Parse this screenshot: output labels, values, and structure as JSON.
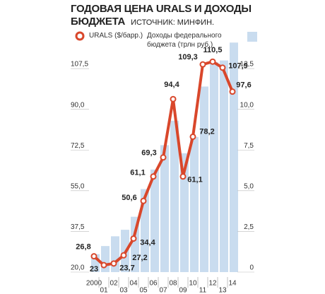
{
  "chart_data": {
    "type": "bar-line",
    "title": "ГОДОВАЯ ЦЕНА URALS И ДОХОДЫ БЮДЖЕТА",
    "subtitle": "ИСТОЧНИК: МИНФИН.",
    "categories": [
      "2000",
      "01",
      "02",
      "03",
      "04",
      "05",
      "06",
      "07",
      "08",
      "09",
      "10",
      "11",
      "12",
      "13",
      "14"
    ],
    "series": [
      {
        "name": "Доходы федерального бюджета (трлн руб.)",
        "type": "bar",
        "axis": "y2",
        "color": "#c9dcef",
        "values": [
          1.1,
          1.6,
          2.2,
          2.6,
          3.4,
          5.1,
          6.3,
          7.8,
          9.3,
          7.3,
          8.3,
          11.4,
          12.9,
          13.0,
          14.1
        ]
      },
      {
        "name": "URALS ($/барр.)",
        "type": "line",
        "color": "#d9472b",
        "values": [
          26.8,
          23,
          23.7,
          27.2,
          34.4,
          50.6,
          61.1,
          69.3,
          94.4,
          61.1,
          78.2,
          109.3,
          110.5,
          107.9,
          97.6
        ],
        "value_labels": [
          "26,8",
          "23",
          "23,7",
          "27,2",
          "34,4",
          "50,6",
          "61,1",
          "69,3",
          "94,4",
          "61,1",
          "78,2",
          "109,3",
          "110,5",
          "107,9",
          "97,6"
        ]
      }
    ],
    "ylim": [
      20,
      125
    ],
    "yticks": [
      {
        "value": 20,
        "label": "20,0"
      },
      {
        "value": 37.5,
        "label": "37,5"
      },
      {
        "value": 55,
        "label": "55,0"
      },
      {
        "value": 72.5,
        "label": "72,5"
      },
      {
        "value": 90,
        "label": "90,0"
      },
      {
        "value": 107.5,
        "label": "107,5"
      }
    ],
    "y2lim": [
      0,
      15
    ],
    "y2ticks": [
      0,
      {
        "value": 2.5,
        "label": "2,5"
      },
      {
        "value": 5,
        "label": "5,0"
      },
      {
        "value": 7.5,
        "label": "7,5"
      },
      {
        "value": 10,
        "label": "10,0"
      },
      {
        "value": 12.5,
        "label": "12,5"
      }
    ],
    "grid": false
  }
}
